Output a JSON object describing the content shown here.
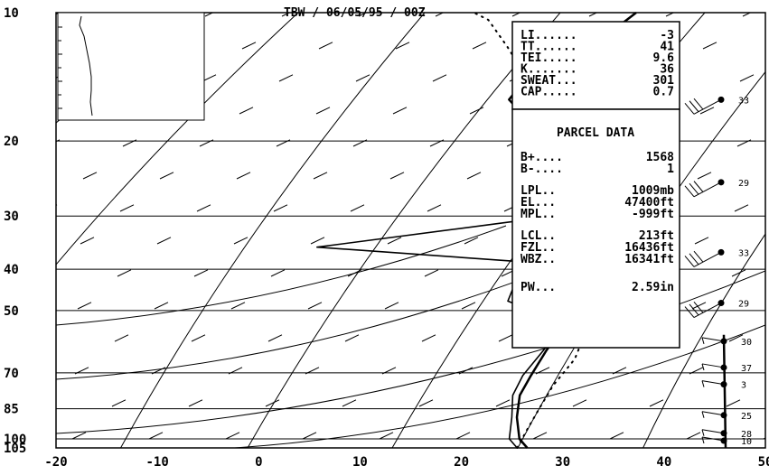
{
  "chart_data": {
    "type": "line",
    "title": "TBW / 06/05/95 / 00Z",
    "xlabel": "",
    "ylabel": "",
    "xlim": [
      -20,
      50
    ],
    "x_ticks": [
      "-20",
      "-10",
      "0",
      "10",
      "20",
      "30",
      "40",
      "50"
    ],
    "y_ticks": [
      {
        "p": 10,
        "label": "10"
      },
      {
        "p": 20,
        "label": "20"
      },
      {
        "p": 30,
        "label": "30"
      },
      {
        "p": 40,
        "label": "40"
      },
      {
        "p": 50,
        "label": "50"
      },
      {
        "p": 70,
        "label": "70"
      },
      {
        "p": 85,
        "label": "85"
      },
      {
        "p": 100,
        "label": "100"
      },
      {
        "p": 105,
        "label": "105"
      }
    ],
    "series": [
      {
        "role": "temperature",
        "points": [
          [
            26.5,
            105
          ],
          [
            25,
            100
          ],
          [
            23,
            89
          ],
          [
            21.5,
            79
          ],
          [
            21,
            71
          ],
          [
            20.5,
            62
          ],
          [
            20.3,
            55
          ],
          [
            19.8,
            51
          ],
          [
            17.5,
            46
          ],
          [
            14.5,
            41
          ],
          [
            12.7,
            36
          ],
          [
            11.5,
            33
          ],
          [
            10.8,
            30
          ],
          [
            9,
            26
          ],
          [
            6,
            22
          ],
          [
            2,
            19
          ],
          [
            -3.5,
            16
          ],
          [
            -3.5,
            15.5
          ],
          [
            -1,
            12.5
          ],
          [
            0.5,
            11.5
          ],
          [
            1.5,
            10.6
          ],
          [
            2,
            10
          ]
        ]
      },
      {
        "role": "dewpoint",
        "points": [
          [
            25.5,
            105
          ],
          [
            24,
            100
          ],
          [
            22.5,
            89
          ],
          [
            20.8,
            79
          ],
          [
            20.2,
            71
          ],
          [
            20.2,
            62
          ],
          [
            20,
            55
          ],
          [
            17.5,
            51.5
          ],
          [
            12.7,
            47.5
          ],
          [
            12.2,
            44.5
          ],
          [
            13,
            41
          ],
          [
            11.5,
            38.5
          ],
          [
            -10.5,
            35.5
          ],
          [
            10.5,
            30
          ]
        ]
      },
      {
        "role": "parcel",
        "points": [
          [
            25.5,
            105
          ],
          [
            25,
            95
          ],
          [
            24.5,
            85
          ],
          [
            24,
            75
          ],
          [
            24,
            65
          ],
          [
            23,
            57
          ],
          [
            21,
            48
          ],
          [
            19.3,
            42
          ],
          [
            16,
            34
          ],
          [
            11.5,
            27
          ],
          [
            7.2,
            21.5
          ],
          [
            3,
            18
          ],
          [
            -3,
            14.5
          ],
          [
            -8,
            12
          ],
          [
            -12,
            10.4
          ],
          [
            -14,
            10
          ]
        ]
      }
    ],
    "indices": [
      {
        "label": "LI......",
        "value": "-3"
      },
      {
        "label": "TT......",
        "value": "41"
      },
      {
        "label": "TEI.....",
        "value": "9.6"
      },
      {
        "label": "K.......",
        "value": "36"
      },
      {
        "label": "SWEAT...",
        "value": "301"
      },
      {
        "label": "CAP.....",
        "value": "0.7"
      }
    ],
    "parcel_header": "PARCEL DATA",
    "parcel": [
      {
        "label": "B+....",
        "value": "1568"
      },
      {
        "label": "B-....",
        "value": "1"
      },
      {
        "label": "LPL..",
        "value": "1009mb"
      },
      {
        "label": "EL...",
        "value": "47400ft"
      },
      {
        "label": "MPL..",
        "value": "-999ft"
      },
      {
        "label": "LCL..",
        "value": "213ft"
      },
      {
        "label": "FZL..",
        "value": "16436ft"
      },
      {
        "label": "WBZ..",
        "value": "16341ft"
      },
      {
        "label": "PW...",
        "value": "2.59in"
      }
    ],
    "wind_barbs": [
      {
        "p": 16,
        "speed": "33"
      },
      {
        "p": 25,
        "speed": "29"
      },
      {
        "p": 36.5,
        "speed": "33"
      },
      {
        "p": 48,
        "speed": "29"
      },
      {
        "p": 59,
        "speed": "30"
      },
      {
        "p": 68,
        "speed": "37"
      },
      {
        "p": 74.5,
        "speed": "3"
      },
      {
        "p": 88,
        "speed": "25"
      },
      {
        "p": 97,
        "speed": "28"
      },
      {
        "p": 101,
        "speed": "10"
      }
    ]
  }
}
